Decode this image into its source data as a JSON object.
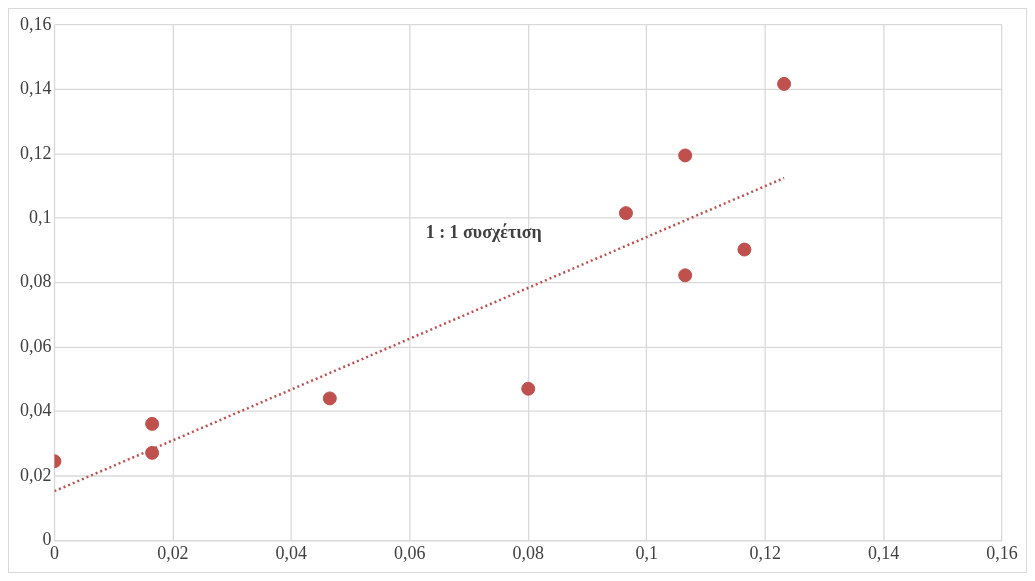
{
  "chart_data": {
    "type": "scatter",
    "xlim": [
      0,
      0.16
    ],
    "ylim": [
      0,
      0.16
    ],
    "xticks": [
      0,
      {
        "value": 0.02,
        "label": "0,02"
      },
      {
        "value": 0.04,
        "label": "0,04"
      },
      {
        "value": 0.06,
        "label": "0,06"
      },
      {
        "value": 0.08,
        "label": "0,08"
      },
      {
        "value": 0.1,
        "label": "0,1"
      },
      {
        "value": 0.12,
        "label": "0,12"
      },
      {
        "value": 0.14,
        "label": "0,14"
      },
      {
        "value": 0.16,
        "label": "0,16"
      }
    ],
    "yticks": [
      0,
      {
        "value": 0.02,
        "label": "0,02"
      },
      {
        "value": 0.04,
        "label": "0,04"
      },
      {
        "value": 0.06,
        "label": "0,06"
      },
      {
        "value": 0.08,
        "label": "0,08"
      },
      {
        "value": 0.1,
        "label": "0,1"
      },
      {
        "value": 0.12,
        "label": "0,12"
      },
      {
        "value": 0.14,
        "label": "0,14"
      },
      {
        "value": 0.16,
        "label": "0,16"
      }
    ],
    "grid": true,
    "legend": false,
    "series": [
      {
        "marker": "circle",
        "color": "#c0504d",
        "x": [
          0,
          0.0165,
          0.0165,
          0.0465,
          0.08,
          0.0965,
          0.1065,
          0.1065,
          0.1165,
          0.1232
        ],
        "values": [
          0.0246,
          0.0362,
          0.0272,
          0.0441,
          0.0471,
          0.1016,
          0.1195,
          0.0823,
          0.0903,
          0.1417
        ]
      },
      {
        "type": "line",
        "color": "#c0504d",
        "line_style": "dotted",
        "x": [
          0,
          0.1232
        ],
        "values": [
          0.0153,
          0.1125
        ]
      }
    ],
    "annotations": [
      "1 : 1 συσχέτιση"
    ]
  }
}
